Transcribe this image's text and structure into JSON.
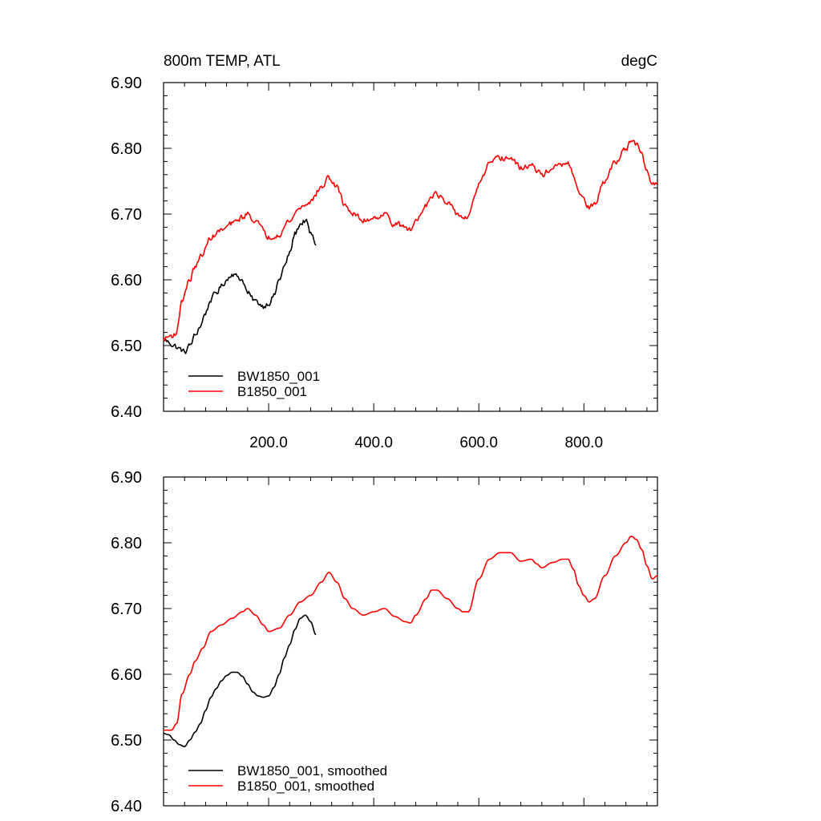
{
  "colors": {
    "series_black": "#000000",
    "series_red": "#ff0000"
  },
  "chart_data": [
    {
      "type": "line",
      "title": "800m TEMP, ATL",
      "units": "degC",
      "xlim": [
        0,
        940
      ],
      "ylim": [
        6.4,
        6.9
      ],
      "x_ticks": [
        200,
        400,
        600,
        800
      ],
      "x_tick_labels": [
        "200.0",
        "400.0",
        "600.0",
        "800.0"
      ],
      "y_ticks": [
        6.4,
        6.5,
        6.6,
        6.7,
        6.8,
        6.9
      ],
      "y_tick_labels": [
        "6.40",
        "6.50",
        "6.60",
        "6.70",
        "6.80",
        "6.90"
      ],
      "legend_position": "bottom-left",
      "series": [
        {
          "name": "BW1850_001",
          "color": "#000000",
          "noise": 0.007,
          "x": [
            0,
            10,
            20,
            30,
            40,
            50,
            60,
            70,
            80,
            90,
            100,
            110,
            120,
            130,
            140,
            150,
            160,
            170,
            180,
            190,
            200,
            210,
            220,
            230,
            240,
            250,
            260,
            270,
            280,
            290
          ],
          "y": [
            6.51,
            6.505,
            6.5,
            6.495,
            6.49,
            6.5,
            6.515,
            6.53,
            6.55,
            6.57,
            6.58,
            6.59,
            6.6,
            6.61,
            6.605,
            6.6,
            6.58,
            6.57,
            6.565,
            6.56,
            6.565,
            6.575,
            6.6,
            6.62,
            6.64,
            6.67,
            6.685,
            6.69,
            6.67,
            6.655
          ]
        },
        {
          "name": "B1850_001",
          "color": "#ff0000",
          "noise": 0.007,
          "x": [
            0,
            15,
            25,
            35,
            50,
            60,
            75,
            90,
            110,
            130,
            150,
            160,
            175,
            190,
            200,
            220,
            240,
            260,
            280,
            300,
            315,
            330,
            345,
            360,
            380,
            400,
            420,
            440,
            460,
            470,
            480,
            500,
            510,
            520,
            540,
            560,
            570,
            580,
            600,
            620,
            640,
            660,
            680,
            700,
            710,
            720,
            740,
            760,
            770,
            780,
            790,
            800,
            810,
            820,
            840,
            860,
            880,
            890,
            900,
            910,
            920,
            930,
            940
          ],
          "y": [
            6.51,
            6.515,
            6.52,
            6.57,
            6.6,
            6.62,
            6.64,
            6.665,
            6.675,
            6.685,
            6.695,
            6.7,
            6.69,
            6.675,
            6.665,
            6.67,
            6.69,
            6.71,
            6.72,
            6.74,
            6.755,
            6.74,
            6.715,
            6.7,
            6.69,
            6.695,
            6.7,
            6.685,
            6.68,
            6.675,
            6.69,
            6.715,
            6.73,
            6.73,
            6.715,
            6.7,
            6.695,
            6.695,
            6.745,
            6.775,
            6.785,
            6.785,
            6.77,
            6.775,
            6.765,
            6.76,
            6.77,
            6.775,
            6.775,
            6.76,
            6.735,
            6.72,
            6.71,
            6.715,
            6.75,
            6.78,
            6.8,
            6.81,
            6.805,
            6.79,
            6.765,
            6.745,
            6.75
          ]
        }
      ]
    },
    {
      "type": "line",
      "title": "",
      "units": "",
      "xlim": [
        0,
        940
      ],
      "ylim": [
        6.4,
        6.9
      ],
      "x_ticks": [
        200,
        400,
        600,
        800
      ],
      "x_tick_labels": [],
      "y_ticks": [
        6.4,
        6.5,
        6.6,
        6.7,
        6.8,
        6.9
      ],
      "y_tick_labels": [
        "6.40",
        "6.50",
        "6.60",
        "6.70",
        "6.80",
        "6.90"
      ],
      "legend_position": "bottom-left",
      "series": [
        {
          "name": "BW1850_001, smoothed",
          "color": "#000000",
          "noise": 0.0,
          "x": [
            0,
            10,
            20,
            30,
            40,
            50,
            60,
            70,
            80,
            90,
            100,
            110,
            120,
            130,
            140,
            150,
            160,
            170,
            180,
            190,
            200,
            210,
            220,
            230,
            240,
            250,
            260,
            270,
            280,
            290
          ],
          "y": [
            6.51,
            6.508,
            6.5,
            6.493,
            6.49,
            6.5,
            6.512,
            6.525,
            6.545,
            6.565,
            6.578,
            6.59,
            6.598,
            6.603,
            6.603,
            6.597,
            6.585,
            6.573,
            6.567,
            6.565,
            6.567,
            6.58,
            6.6,
            6.625,
            6.645,
            6.668,
            6.685,
            6.69,
            6.68,
            6.66
          ]
        },
        {
          "name": "B1850_001, smoothed",
          "color": "#ff0000",
          "noise": 0.0,
          "x": [
            0,
            15,
            25,
            35,
            50,
            60,
            75,
            90,
            110,
            130,
            150,
            160,
            175,
            190,
            200,
            220,
            240,
            260,
            280,
            300,
            315,
            330,
            345,
            360,
            380,
            400,
            420,
            440,
            460,
            470,
            480,
            500,
            510,
            520,
            540,
            560,
            570,
            580,
            600,
            620,
            640,
            660,
            680,
            700,
            710,
            720,
            740,
            760,
            770,
            780,
            790,
            800,
            810,
            820,
            840,
            860,
            880,
            890,
            900,
            910,
            920,
            930,
            940
          ],
          "y": [
            6.515,
            6.515,
            6.525,
            6.57,
            6.6,
            6.62,
            6.64,
            6.665,
            6.675,
            6.685,
            6.695,
            6.7,
            6.69,
            6.675,
            6.665,
            6.67,
            6.69,
            6.71,
            6.72,
            6.74,
            6.755,
            6.74,
            6.715,
            6.7,
            6.69,
            6.695,
            6.7,
            6.688,
            6.68,
            6.678,
            6.69,
            6.715,
            6.728,
            6.728,
            6.715,
            6.7,
            6.695,
            6.695,
            6.745,
            6.775,
            6.785,
            6.785,
            6.772,
            6.775,
            6.768,
            6.762,
            6.77,
            6.775,
            6.775,
            6.76,
            6.735,
            6.72,
            6.71,
            6.715,
            6.75,
            6.78,
            6.8,
            6.81,
            6.805,
            6.79,
            6.765,
            6.745,
            6.75
          ]
        }
      ]
    }
  ]
}
